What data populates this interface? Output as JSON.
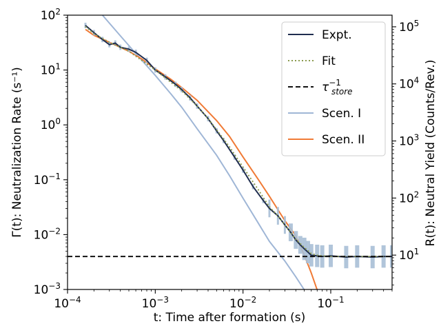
{
  "chart_data": {
    "type": "line",
    "xlabel": "t: Time after formation (s)",
    "ylabel_left": "Γ(t): Neutralization Rate (s⁻¹)",
    "ylabel_right": "R(t): Neutral Yield (Counts/Rev.)",
    "x_scale": "log",
    "y_scale": "log",
    "xlim": [
      0.0001,
      0.5
    ],
    "ylim": [
      0.001,
      100
    ],
    "ylim_right": [
      2.5,
      160000
    ],
    "x_ticks": [
      {
        "value": 0.0001,
        "base": "10",
        "exp": "−4"
      },
      {
        "value": 0.001,
        "base": "10",
        "exp": "−3"
      },
      {
        "value": 0.01,
        "base": "10",
        "exp": "−2"
      },
      {
        "value": 0.1,
        "base": "10",
        "exp": "−1"
      }
    ],
    "y_ticks_left": [
      {
        "value": 0.001,
        "base": "10",
        "exp": "−3"
      },
      {
        "value": 0.01,
        "base": "10",
        "exp": "−2"
      },
      {
        "value": 0.1,
        "base": "10",
        "exp": "−1"
      },
      {
        "value": 1,
        "base": "10",
        "exp": "0"
      },
      {
        "value": 10,
        "base": "10",
        "exp": "1"
      },
      {
        "value": 100,
        "base": "10",
        "exp": "2"
      }
    ],
    "y_ticks_right": [
      {
        "value": 10,
        "base": "10",
        "exp": "1"
      },
      {
        "value": 100,
        "base": "10",
        "exp": "2"
      },
      {
        "value": 1000,
        "base": "10",
        "exp": "3"
      },
      {
        "value": 10000,
        "base": "10",
        "exp": "4"
      },
      {
        "value": 100000,
        "base": "10",
        "exp": "5"
      }
    ],
    "legend_position": "top-right",
    "grid": false,
    "series": [
      {
        "name": "Expt.",
        "style": "solid",
        "color": "#1f2d4f",
        "band_color": "#a8bfd6",
        "x": [
          0.00016,
          0.0002,
          0.00025,
          0.0003,
          0.00035,
          0.0004,
          0.0005,
          0.0006,
          0.0008,
          0.001,
          0.0013,
          0.0017,
          0.002,
          0.0025,
          0.003,
          0.004,
          0.005,
          0.006,
          0.008,
          0.01,
          0.013,
          0.017,
          0.02,
          0.025,
          0.03,
          0.035,
          0.04,
          0.045,
          0.05,
          0.055,
          0.06,
          0.07,
          0.08,
          0.1,
          0.15,
          0.2,
          0.3,
          0.4,
          0.5
        ],
        "y": [
          65,
          48,
          36,
          29,
          31,
          26,
          24,
          21,
          15,
          10,
          7.5,
          5.5,
          4.4,
          3.1,
          2.2,
          1.3,
          0.78,
          0.52,
          0.26,
          0.15,
          0.075,
          0.042,
          0.03,
          0.022,
          0.015,
          0.011,
          0.008,
          0.0065,
          0.0055,
          0.0048,
          0.0042,
          0.0041,
          0.004,
          0.0041,
          0.0039,
          0.004,
          0.0039,
          0.004,
          0.004
        ]
      },
      {
        "name": "Fit",
        "style": "dotted",
        "color": "#8a9a4e",
        "x": [
          0.00016,
          0.0002,
          0.0003,
          0.0004,
          0.0005,
          0.0007,
          0.001,
          0.0015,
          0.002,
          0.003,
          0.004,
          0.005,
          0.007,
          0.01,
          0.015,
          0.02,
          0.025,
          0.03,
          0.035,
          0.04,
          0.05,
          0.06,
          0.07,
          0.08,
          0.1,
          0.2,
          0.5
        ],
        "y": [
          62,
          46,
          32,
          26,
          22,
          15,
          10,
          6,
          4.2,
          2.2,
          1.3,
          0.82,
          0.4,
          0.17,
          0.065,
          0.032,
          0.022,
          0.015,
          0.011,
          0.0082,
          0.0058,
          0.0045,
          0.0042,
          0.0041,
          0.004,
          0.004,
          0.004
        ]
      },
      {
        "name": "τ_store^−1",
        "legend_main": "τ",
        "legend_sub": "store",
        "legend_sup": "−1",
        "style": "dashed",
        "color": "#111111",
        "x": [
          0.0001,
          0.5
        ],
        "y": [
          0.004,
          0.004
        ]
      },
      {
        "name": "Scen. I",
        "style": "solid",
        "color": "#9fb6d6",
        "x": [
          0.0001,
          0.00025,
          0.0004,
          0.0006,
          0.001,
          0.0015,
          0.002,
          0.003,
          0.005,
          0.007,
          0.01,
          0.015,
          0.02,
          0.03,
          0.04,
          0.05
        ],
        "y": [
          400,
          100,
          42,
          20,
          8,
          3.7,
          2.1,
          0.85,
          0.28,
          0.12,
          0.046,
          0.016,
          0.0075,
          0.0033,
          0.0017,
          0.00098
        ]
      },
      {
        "name": "Scen. II",
        "style": "solid",
        "color": "#f07a35",
        "x": [
          0.00016,
          0.0002,
          0.0003,
          0.0005,
          0.0007,
          0.001,
          0.0015,
          0.002,
          0.003,
          0.005,
          0.007,
          0.01,
          0.015,
          0.02,
          0.03,
          0.04,
          0.05,
          0.06,
          0.07
        ],
        "y": [
          55,
          43,
          32,
          22,
          16,
          10.5,
          6.8,
          4.8,
          2.8,
          1.2,
          0.62,
          0.26,
          0.1,
          0.05,
          0.018,
          0.0095,
          0.0042,
          0.002,
          0.00098
        ]
      }
    ]
  }
}
